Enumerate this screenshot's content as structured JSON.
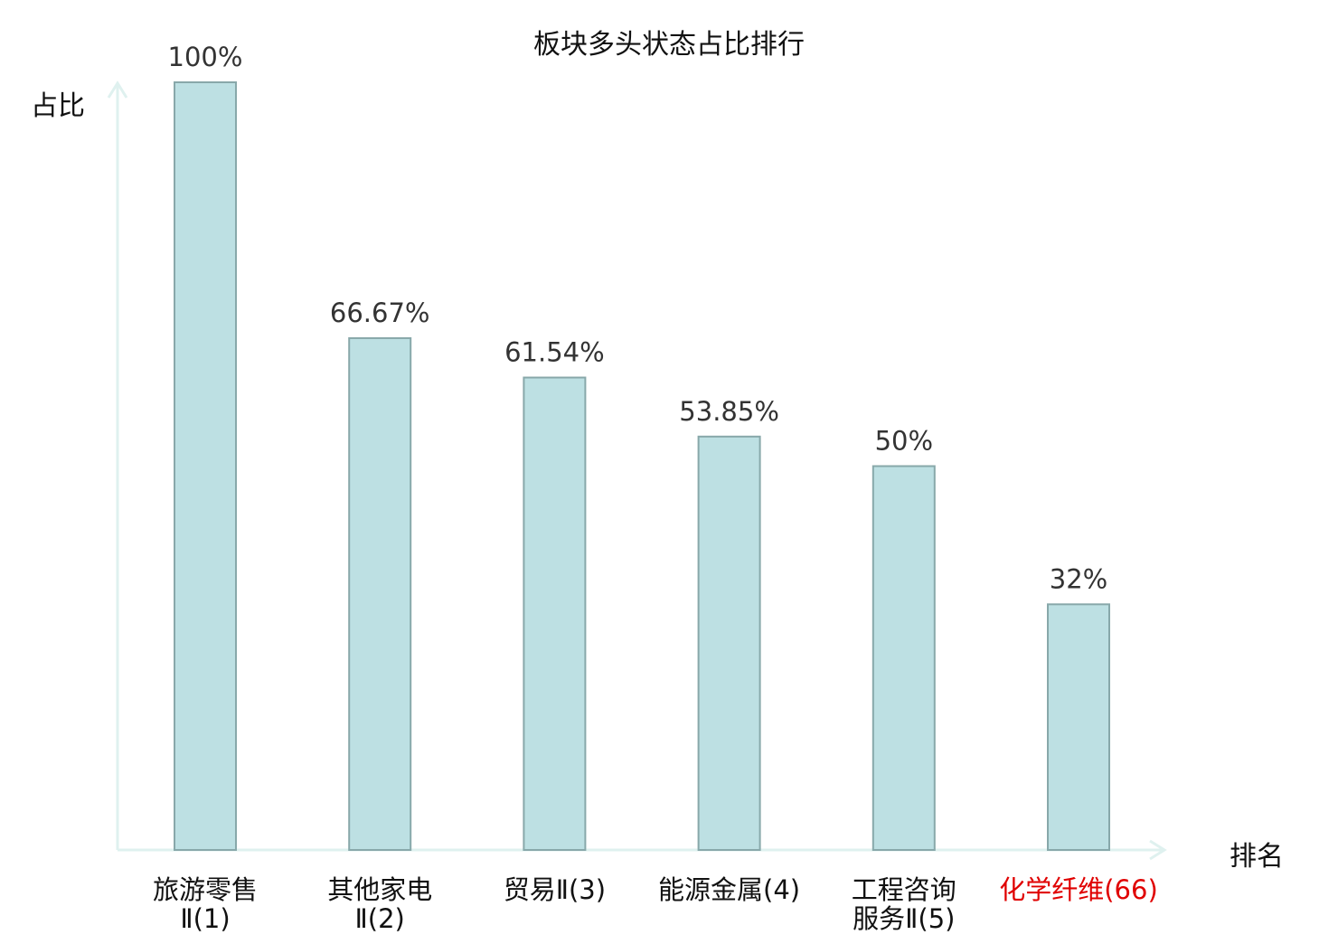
{
  "chart_data": {
    "type": "bar",
    "title": "板块多头状态占比排行",
    "ylabel": "占比",
    "xlabel": "排名",
    "ylim": [
      0,
      100
    ],
    "grid": false,
    "legend": "none",
    "categories": [
      [
        "旅游零售",
        "Ⅱ(1)"
      ],
      [
        "其他家电",
        "Ⅱ(2)"
      ],
      [
        "贸易Ⅱ(3)"
      ],
      [
        "能源金属(4)"
      ],
      [
        "工程咨询",
        "服务Ⅱ(5)"
      ],
      [
        "化学纤维(66)"
      ]
    ],
    "values": [
      100,
      66.67,
      61.54,
      53.85,
      50,
      32
    ],
    "value_labels": [
      "100%",
      "66.67%",
      "61.54%",
      "53.85%",
      "50%",
      "32%"
    ],
    "highlight_index": 5,
    "colors": {
      "bar_fill": "#bde0e3",
      "bar_stroke": "#88a8aa",
      "axis": "#dff1ef",
      "label": "#333333",
      "highlight": "#e00000"
    }
  }
}
